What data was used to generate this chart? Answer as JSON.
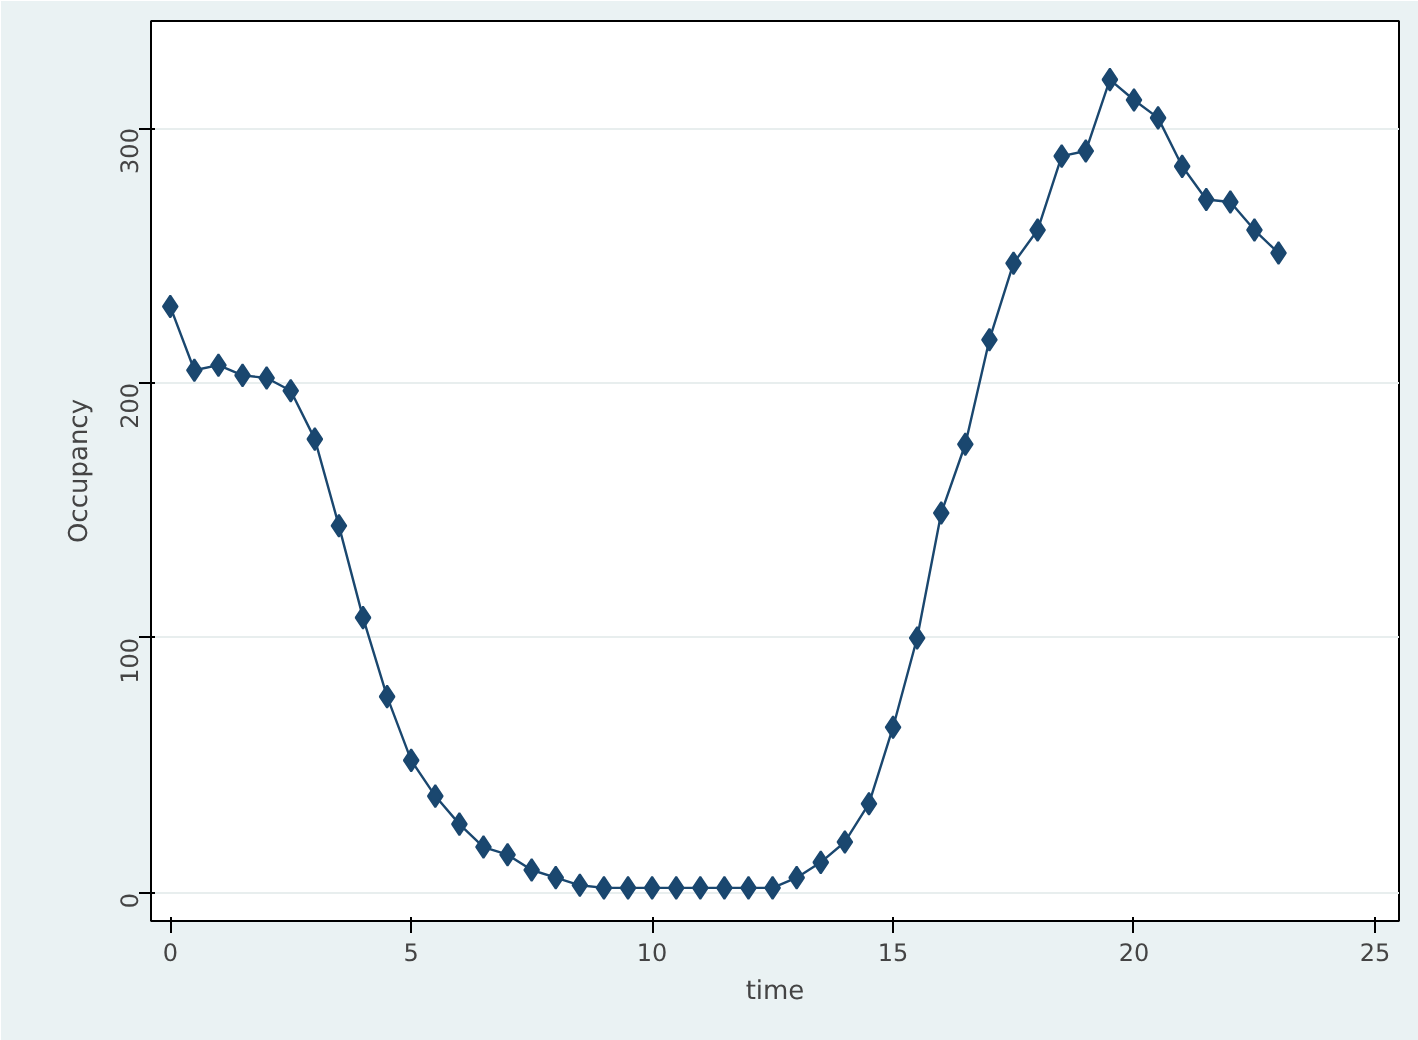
{
  "chart_data": {
    "type": "line",
    "xlabel": "time",
    "ylabel": "Occupancy",
    "x": [
      0,
      0.5,
      1,
      1.5,
      2,
      2.5,
      3,
      3.5,
      4,
      4.5,
      5,
      5.5,
      6,
      6.5,
      7,
      7.5,
      8,
      8.5,
      9,
      9.5,
      10,
      10.5,
      11,
      11.5,
      12,
      12.5,
      13,
      13.5,
      14,
      14.5,
      15,
      15.5,
      16,
      16.5,
      17,
      17.5,
      18,
      18.5,
      19,
      19.5,
      20,
      20.5,
      21,
      21.5,
      22,
      22.5,
      23
    ],
    "series": [
      {
        "color": "#1a476f",
        "values": [
          230,
          205,
          207,
          203,
          202,
          197,
          178,
          144,
          108,
          77,
          52,
          38,
          27,
          18,
          15,
          9,
          6,
          3,
          2,
          2,
          2,
          2,
          2,
          2,
          2,
          2,
          6,
          12,
          20,
          35,
          65,
          100,
          149,
          176,
          217,
          247,
          260,
          289,
          291,
          319,
          311,
          304,
          285,
          272,
          271,
          260,
          251
        ]
      }
    ],
    "xlim": [
      -0.4,
      25.5
    ],
    "ylim": [
      -11,
      342
    ],
    "xticks": [
      0,
      5,
      10,
      15,
      20,
      25
    ],
    "yticks": [
      0,
      100,
      200,
      300
    ],
    "grid": "y",
    "marker": "diamond",
    "line_style": "solid"
  }
}
